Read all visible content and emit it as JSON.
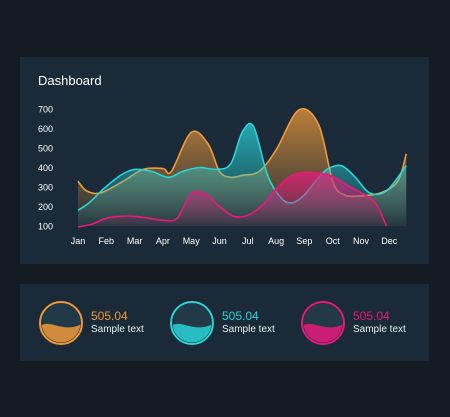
{
  "dashboard": {
    "title": "Dashboard"
  },
  "chart_data": {
    "type": "area",
    "title": "Dashboard",
    "xlabel": "",
    "ylabel": "",
    "categories": [
      "Jan",
      "Feb",
      "Mar",
      "Apr",
      "May",
      "Jun",
      "Jul",
      "Aug",
      "Sep",
      "Oct",
      "Nov",
      "Dec"
    ],
    "ylim": [
      100,
      700
    ],
    "yticks": [
      100,
      200,
      300,
      400,
      500,
      600,
      700
    ],
    "grid": false,
    "series": [
      {
        "color": "#f09a3a",
        "x": [
          0,
          0.3,
          0.8,
          1.6,
          2.3,
          3.0,
          3.3,
          4.0,
          4.6,
          5.0,
          5.4,
          5.8,
          6.4,
          7.0,
          7.8,
          8.5,
          9.0,
          9.4,
          10.0,
          10.7,
          11.3,
          11.6
        ],
        "values": [
          330,
          280,
          270,
          330,
          390,
          395,
          380,
          580,
          520,
          380,
          350,
          360,
          380,
          490,
          695,
          620,
          330,
          260,
          255,
          270,
          330,
          470
        ]
      },
      {
        "color": "#2ad4d8",
        "x": [
          0,
          0.4,
          0.9,
          1.5,
          2.0,
          2.6,
          3.2,
          3.7,
          4.3,
          4.9,
          5.4,
          5.8,
          6.2,
          6.7,
          7.2,
          7.6,
          8.0,
          8.4,
          8.8,
          9.3,
          9.8,
          10.3,
          10.9,
          11.6
        ],
        "values": [
          180,
          220,
          290,
          360,
          390,
          380,
          350,
          380,
          400,
          390,
          420,
          580,
          610,
          360,
          240,
          220,
          260,
          330,
          390,
          410,
          350,
          270,
          280,
          410
        ]
      },
      {
        "color": "#e8197b",
        "x": [
          0,
          0.5,
          1.0,
          1.5,
          2.0,
          2.5,
          3.0,
          3.5,
          4.0,
          4.5,
          5.0,
          5.5,
          6.0,
          6.5,
          7.0,
          7.5,
          8.0,
          8.5,
          9.0,
          9.5,
          10.0,
          10.5,
          10.9
        ],
        "values": [
          95,
          110,
          140,
          150,
          150,
          140,
          130,
          140,
          265,
          265,
          200,
          150,
          155,
          205,
          290,
          355,
          375,
          370,
          355,
          310,
          270,
          220,
          100
        ]
      }
    ]
  },
  "stats": [
    {
      "value": "505.04",
      "label": "Sample text",
      "color": "#f09a3a",
      "fill": 0.45
    },
    {
      "value": "505.04",
      "label": "Sample text",
      "color": "#2ad4d8",
      "fill": 0.45
    },
    {
      "value": "505.04",
      "label": "Sample text",
      "color": "#e8197b",
      "fill": 0.45
    }
  ]
}
